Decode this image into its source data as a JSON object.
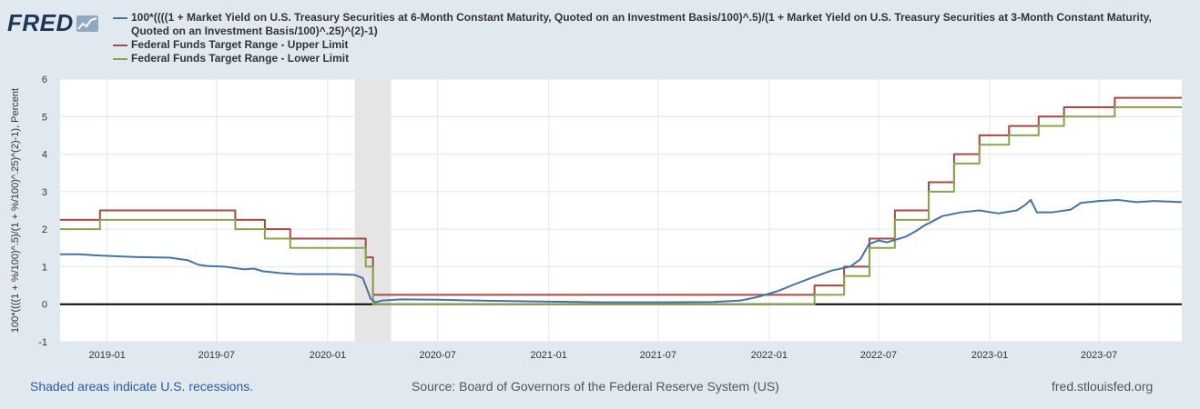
{
  "logo": {
    "text": "FRED",
    "icon": "chart-line-icon"
  },
  "legend": [
    {
      "label": "100*((((1 + Market Yield on U.S. Treasury Securities at 6-Month Constant Maturity, Quoted on an Investment Basis/100)^.5)/(1 + Market Yield on U.S. Treasury Securities at 3-Month Constant Maturity, Quoted on an Investment Basis/100)^.25)^(2)-1)",
      "color": "#4572a7"
    },
    {
      "label": "Federal Funds Target Range - Upper Limit",
      "color": "#aa4643"
    },
    {
      "label": "Federal Funds Target Range - Lower Limit",
      "color": "#89a54e"
    }
  ],
  "footer": {
    "recession_note": "Shaded areas indicate U.S. recessions.",
    "source": "Source: Board of Governors of the Federal Reserve System (US)",
    "site": "fred.stlouisfed.org"
  },
  "chart_data": {
    "type": "line",
    "ylabel": "100*((((1 + %/100)^.5)/(1 + %/100)^.25)^(2)-1), Percent",
    "ylim": [
      -1,
      6
    ],
    "yticks": [
      -1,
      0,
      1,
      2,
      3,
      4,
      5,
      6
    ],
    "xlim": [
      "2018-10-15",
      "2023-11-15"
    ],
    "xticks": [
      "2019-01",
      "2019-07",
      "2020-01",
      "2020-07",
      "2021-01",
      "2021-07",
      "2022-01",
      "2022-07",
      "2023-01",
      "2023-07"
    ],
    "grid": true,
    "recession": {
      "start": "2020-02-15",
      "end": "2020-04-15"
    },
    "series": [
      {
        "name": "100*((((1 + Market Yield on U.S. Treasury Securities at 6-Month Constant Maturity, Quoted on an Investment Basis/100)^.5)/(1 + Market Yield on U.S. Treasury Securities at 3-Month Constant Maturity, Quoted on an Investment Basis/100)^.25)^(2)-1)",
        "color": "#4572a7",
        "style": "line",
        "points": [
          [
            "2018-10-15",
            1.33
          ],
          [
            "2018-11-15",
            1.33
          ],
          [
            "2018-12-15",
            1.3
          ],
          [
            "2019-01-15",
            1.28
          ],
          [
            "2019-02-15",
            1.26
          ],
          [
            "2019-03-15",
            1.25
          ],
          [
            "2019-04-15",
            1.24
          ],
          [
            "2019-05-15",
            1.17
          ],
          [
            "2019-06-01",
            1.05
          ],
          [
            "2019-06-15",
            1.02
          ],
          [
            "2019-07-15",
            1.0
          ],
          [
            "2019-08-15",
            0.93
          ],
          [
            "2019-09-01",
            0.95
          ],
          [
            "2019-09-15",
            0.88
          ],
          [
            "2019-10-15",
            0.83
          ],
          [
            "2019-11-15",
            0.8
          ],
          [
            "2019-12-15",
            0.8
          ],
          [
            "2020-01-15",
            0.8
          ],
          [
            "2020-02-15",
            0.78
          ],
          [
            "2020-02-28",
            0.7
          ],
          [
            "2020-03-05",
            0.45
          ],
          [
            "2020-03-12",
            0.15
          ],
          [
            "2020-03-20",
            0.05
          ],
          [
            "2020-04-01",
            0.1
          ],
          [
            "2020-05-01",
            0.13
          ],
          [
            "2020-07-01",
            0.12
          ],
          [
            "2020-10-01",
            0.09
          ],
          [
            "2021-01-01",
            0.07
          ],
          [
            "2021-04-01",
            0.05
          ],
          [
            "2021-07-01",
            0.05
          ],
          [
            "2021-10-01",
            0.06
          ],
          [
            "2021-11-15",
            0.1
          ],
          [
            "2021-12-15",
            0.2
          ],
          [
            "2022-01-15",
            0.35
          ],
          [
            "2022-02-15",
            0.55
          ],
          [
            "2022-03-15",
            0.72
          ],
          [
            "2022-04-15",
            0.9
          ],
          [
            "2022-05-15",
            1.0
          ],
          [
            "2022-06-01",
            1.2
          ],
          [
            "2022-06-15",
            1.6
          ],
          [
            "2022-07-01",
            1.7
          ],
          [
            "2022-07-15",
            1.65
          ],
          [
            "2022-08-15",
            1.8
          ],
          [
            "2022-09-01",
            1.95
          ],
          [
            "2022-09-15",
            2.1
          ],
          [
            "2022-10-15",
            2.35
          ],
          [
            "2022-11-15",
            2.45
          ],
          [
            "2022-12-15",
            2.5
          ],
          [
            "2023-01-15",
            2.42
          ],
          [
            "2023-02-15",
            2.5
          ],
          [
            "2023-03-01",
            2.65
          ],
          [
            "2023-03-10",
            2.78
          ],
          [
            "2023-03-20",
            2.45
          ],
          [
            "2023-04-15",
            2.45
          ],
          [
            "2023-05-15",
            2.52
          ],
          [
            "2023-06-01",
            2.7
          ],
          [
            "2023-07-01",
            2.75
          ],
          [
            "2023-08-01",
            2.78
          ],
          [
            "2023-09-01",
            2.72
          ],
          [
            "2023-10-01",
            2.75
          ],
          [
            "2023-11-15",
            2.72
          ]
        ]
      },
      {
        "name": "Federal Funds Target Range - Upper Limit",
        "color": "#aa4643",
        "style": "step",
        "points": [
          [
            "2018-10-15",
            2.25
          ],
          [
            "2018-12-20",
            2.5
          ],
          [
            "2019-08-01",
            2.25
          ],
          [
            "2019-09-19",
            2.0
          ],
          [
            "2019-10-31",
            1.75
          ],
          [
            "2020-03-04",
            1.25
          ],
          [
            "2020-03-16",
            0.25
          ],
          [
            "2022-03-17",
            0.5
          ],
          [
            "2022-05-05",
            1.0
          ],
          [
            "2022-06-16",
            1.75
          ],
          [
            "2022-07-28",
            2.5
          ],
          [
            "2022-09-22",
            3.25
          ],
          [
            "2022-11-03",
            4.0
          ],
          [
            "2022-12-15",
            4.5
          ],
          [
            "2023-02-02",
            4.75
          ],
          [
            "2023-03-23",
            5.0
          ],
          [
            "2023-05-04",
            5.25
          ],
          [
            "2023-07-27",
            5.5
          ],
          [
            "2023-11-15",
            5.5
          ]
        ]
      },
      {
        "name": "Federal Funds Target Range - Lower Limit",
        "color": "#89a54e",
        "style": "step",
        "points": [
          [
            "2018-10-15",
            2.0
          ],
          [
            "2018-12-20",
            2.25
          ],
          [
            "2019-08-01",
            2.0
          ],
          [
            "2019-09-19",
            1.75
          ],
          [
            "2019-10-31",
            1.5
          ],
          [
            "2020-03-04",
            1.0
          ],
          [
            "2020-03-16",
            0.0
          ],
          [
            "2022-03-17",
            0.25
          ],
          [
            "2022-05-05",
            0.75
          ],
          [
            "2022-06-16",
            1.5
          ],
          [
            "2022-07-28",
            2.25
          ],
          [
            "2022-09-22",
            3.0
          ],
          [
            "2022-11-03",
            3.75
          ],
          [
            "2022-12-15",
            4.25
          ],
          [
            "2023-02-02",
            4.5
          ],
          [
            "2023-03-23",
            4.75
          ],
          [
            "2023-05-04",
            5.0
          ],
          [
            "2023-07-27",
            5.25
          ],
          [
            "2023-11-15",
            5.25
          ]
        ]
      }
    ]
  }
}
